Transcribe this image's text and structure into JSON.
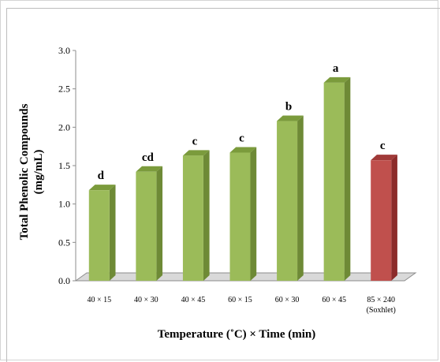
{
  "chart_data": {
    "type": "bar",
    "ylabel_line1": "Total Phenolic Compounds",
    "ylabel_line2": "(mg/mL)",
    "xlabel": "Temperature (˚C) × Time (min)",
    "ylim": [
      0,
      3
    ],
    "yticks": [
      "0.0",
      "0.5",
      "1.0",
      "1.5",
      "2.0",
      "2.5",
      "3.0"
    ],
    "grid": false,
    "categories": [
      {
        "label": "40 × 15",
        "sub": ""
      },
      {
        "label": "40 × 30",
        "sub": ""
      },
      {
        "label": "40 × 45",
        "sub": ""
      },
      {
        "label": "60 × 15",
        "sub": ""
      },
      {
        "label": "60 × 30",
        "sub": ""
      },
      {
        "label": "60 × 45",
        "sub": ""
      },
      {
        "label": "85 × 240",
        "sub": "(Soxhlet)"
      }
    ],
    "values": [
      1.18,
      1.42,
      1.63,
      1.67,
      2.08,
      2.58,
      1.57
    ],
    "letters": [
      "d",
      "cd",
      "c",
      "c",
      "b",
      "a",
      "c"
    ],
    "colors": {
      "green_front": "#9bbb59",
      "green_side": "#6e8a36",
      "green_top": "#7b9b3c",
      "red_front": "#c0504d",
      "red_side": "#8c2b2a",
      "red_top": "#a03a38",
      "floor": "#d9d9d9"
    },
    "highlight_index": 6
  }
}
